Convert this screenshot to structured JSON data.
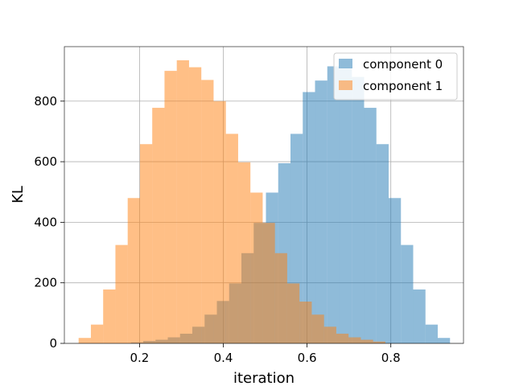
{
  "chart_data": {
    "type": "histogram",
    "title": "",
    "xlabel": "iteration",
    "ylabel": "KL",
    "xlim": [
      0.0205,
      0.9735
    ],
    "ylim": [
      0,
      980
    ],
    "x_ticks": [
      0.2,
      0.4,
      0.6,
      0.8
    ],
    "x_tick_labels": [
      "0.2",
      "0.4",
      "0.6",
      "0.8"
    ],
    "y_ticks": [
      0,
      200,
      400,
      600,
      800
    ],
    "y_tick_labels": [
      "0",
      "200",
      "400",
      "600",
      "800"
    ],
    "grid": true,
    "legend_position": "upper right",
    "bin_width": 0.0293,
    "series": [
      {
        "name": "component 0",
        "color": "#1f77b4",
        "alpha": 0.5,
        "bin_start": 0.1795,
        "counts": [
          3,
          8,
          12,
          20,
          32,
          55,
          95,
          140,
          198,
          298,
          398,
          498,
          595,
          692,
          830,
          868,
          915,
          910,
          880,
          778,
          658,
          480,
          325,
          178,
          62,
          18
        ]
      },
      {
        "name": "component 1",
        "color": "#ff7f0e",
        "alpha": 0.5,
        "bin_start": 0.0545,
        "counts": [
          18,
          62,
          178,
          325,
          480,
          658,
          778,
          900,
          935,
          912,
          870,
          800,
          692,
          598,
          498,
          398,
          298,
          198,
          138,
          95,
          55,
          32,
          20,
          12,
          6
        ]
      }
    ]
  }
}
